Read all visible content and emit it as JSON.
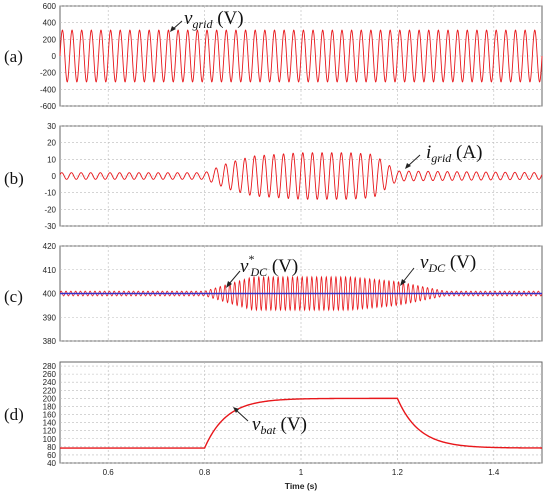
{
  "chart_data": [
    {
      "type": "line",
      "panel_label": "(a)",
      "ylim": [
        -600,
        600
      ],
      "yticks": [
        "600",
        "400",
        "200",
        "0",
        "-200",
        "-400",
        "-600"
      ],
      "xlim": [
        0.5,
        1.5
      ],
      "grid": true,
      "series": [
        {
          "x": [
            0.5,
            1.5
          ],
          "y": [
            310,
            310
          ],
          "color": "#e8171b",
          "amplitude": 310,
          "frequency_hz": 50,
          "description_pts": [
            [
              0.5,
              310
            ],
            [
              0.8,
              310
            ],
            [
              1.2,
              310
            ],
            [
              1.5,
              310
            ]
          ]
        }
      ],
      "annotations": [
        {
          "var": "v",
          "sub": "grid",
          "sup": "",
          "unit": " (V)"
        }
      ]
    },
    {
      "type": "line",
      "panel_label": "(b)",
      "ylim": [
        -30,
        30
      ],
      "yticks": [
        "30",
        "20",
        "10",
        "0",
        "-10",
        "-20",
        "-30"
      ],
      "xlim": [
        0.5,
        1.5
      ],
      "grid": true,
      "series": [
        {
          "x": [
            0.5,
            0.8,
            0.85,
            0.9,
            1.0,
            1.1,
            1.15,
            1.2,
            1.5
          ],
          "y": [
            2,
            2,
            8,
            12,
            14,
            14,
            13,
            3,
            2
          ],
          "color": "#e8171b"
        }
      ],
      "annotations": [
        {
          "var": "i",
          "sub": "grid",
          "sup": "",
          "unit": " (A)"
        }
      ]
    },
    {
      "type": "line",
      "panel_label": "(c)",
      "ylim": [
        380,
        420
      ],
      "yticks": [
        "420",
        "410",
        "400",
        "390",
        "380"
      ],
      "xlim": [
        0.5,
        1.5
      ],
      "grid": true,
      "series": [
        {
          "x": [
            0.5,
            0.8,
            0.85,
            0.9,
            1.0,
            1.1,
            1.15,
            1.2,
            1.3,
            1.5
          ],
          "y": [
            1,
            1,
            4,
            7,
            7,
            7,
            6,
            5,
            1,
            1
          ],
          "color": "#e8171b"
        },
        {
          "x": [
            0.5,
            1.5
          ],
          "y": [
            400,
            400
          ],
          "color": "#3333cc"
        }
      ],
      "annotations": [
        {
          "var": "v",
          "sub": "DC",
          "sup": "*",
          "unit": " (V)"
        },
        {
          "var": "v",
          "sub": "DC",
          "sup": "",
          "unit": " (V)"
        }
      ]
    },
    {
      "type": "line",
      "panel_label": "(d)",
      "ylim": [
        40,
        290
      ],
      "yticks": [
        "280",
        "260",
        "240",
        "220",
        "200",
        "180",
        "160",
        "140",
        "120",
        "100",
        "80",
        "60",
        "40"
      ],
      "xlim": [
        0.5,
        1.5
      ],
      "grid": true,
      "series": [
        {
          "x": [
            0.5,
            0.8,
            0.85,
            0.9,
            1.0,
            1.2,
            1.25,
            1.3,
            1.4,
            1.5
          ],
          "y": [
            77,
            77,
            160,
            190,
            199,
            200,
            135,
            100,
            80,
            77
          ],
          "color": "#e8171b"
        }
      ],
      "annotations": [
        {
          "var": "v",
          "sub": "bat",
          "sup": "",
          "unit": " (V)"
        }
      ]
    }
  ],
  "xaxis": {
    "ticks": [
      "0.6",
      "0.8",
      "1",
      "1.2",
      "1.4"
    ],
    "tick_values": [
      0.6,
      0.8,
      1.0,
      1.2,
      1.4
    ],
    "label": "Time (s)"
  }
}
